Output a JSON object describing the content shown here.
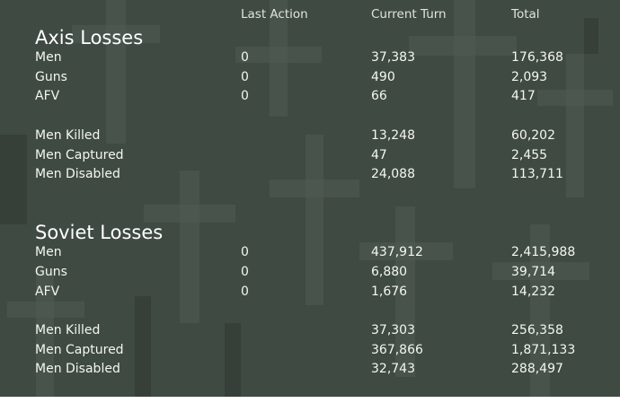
{
  "headers": {
    "last_action": "Last Action",
    "current_turn": "Current Turn",
    "total": "Total"
  },
  "colors": {
    "panel_background": "#3f4a42",
    "text": "#f4f6f2"
  },
  "axis": {
    "title": "Axis Losses",
    "rows": [
      {
        "label": "Men",
        "last_action": "0",
        "current_turn": "37,383",
        "total": "176,368"
      },
      {
        "label": "Guns",
        "last_action": "0",
        "current_turn": "490",
        "total": "2,093"
      },
      {
        "label": "AFV",
        "last_action": "0",
        "current_turn": "66",
        "total": "417"
      },
      {
        "label": "Men Killed",
        "last_action": "",
        "current_turn": "13,248",
        "total": "60,202"
      },
      {
        "label": "Men Captured",
        "last_action": "",
        "current_turn": "47",
        "total": "2,455"
      },
      {
        "label": "Men Disabled",
        "last_action": "",
        "current_turn": "24,088",
        "total": "113,711"
      }
    ]
  },
  "soviet": {
    "title": "Soviet Losses",
    "rows": [
      {
        "label": "Men",
        "last_action": "0",
        "current_turn": "437,912",
        "total": "2,415,988"
      },
      {
        "label": "Guns",
        "last_action": "0",
        "current_turn": "6,880",
        "total": "39,714"
      },
      {
        "label": "AFV",
        "last_action": "0",
        "current_turn": "1,676",
        "total": "14,232"
      },
      {
        "label": "Men Killed",
        "last_action": "",
        "current_turn": "37,303",
        "total": "256,358"
      },
      {
        "label": "Men Captured",
        "last_action": "",
        "current_turn": "367,866",
        "total": "1,871,133"
      },
      {
        "label": "Men Disabled",
        "last_action": "",
        "current_turn": "32,743",
        "total": "288,497"
      }
    ]
  }
}
